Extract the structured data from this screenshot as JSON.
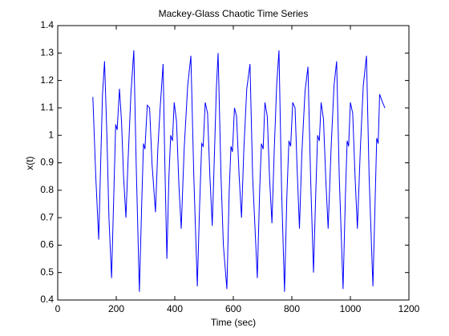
{
  "chart_data": {
    "type": "line",
    "title": "Mackey-Glass Chaotic Time Series",
    "x_label": "Time (sec)",
    "y_label": "x(t)",
    "xlim": [
      0,
      1200
    ],
    "xticks": [
      0,
      200,
      400,
      600,
      800,
      1000,
      1200
    ],
    "ylim": [
      0.4,
      1.4
    ],
    "yticks": [
      0.4,
      0.5,
      0.6,
      0.7,
      0.8,
      0.9,
      1,
      1.1,
      1.2,
      1.3,
      1.4
    ],
    "series": [
      {
        "color": "#0000ff",
        "x": [
          120,
          130,
          140,
          148,
          153,
          160,
          168,
          175,
          184,
          192,
          198,
          203,
          211,
          218,
          225,
          233,
          240,
          250,
          260,
          268,
          279,
          287,
          293,
          298,
          306,
          314,
          322,
          334,
          342,
          350,
          360,
          366,
          373,
          380,
          386,
          392,
          398,
          406,
          414,
          422,
          432,
          444,
          455,
          465,
          477,
          485,
          492,
          497,
          504,
          512,
          520,
          528,
          536,
          542,
          548,
          558,
          566,
          578,
          586,
          592,
          597,
          604,
          611,
          620,
          628,
          636,
          646,
          657,
          666,
          682,
          690,
          696,
          702,
          708,
          716,
          724,
          732,
          740,
          748,
          756,
          765,
          775,
          783,
          790,
          796,
          803,
          811,
          818,
          826,
          834,
          845,
          855,
          864,
          874,
          882,
          888,
          894,
          900,
          908,
          916,
          924,
          934,
          944,
          953,
          962,
          975,
          983,
          989,
          994,
          1000,
          1008,
          1016,
          1024,
          1034,
          1044,
          1055,
          1064,
          1077,
          1085,
          1090,
          1095,
          1100,
          1110,
          1118
        ],
        "values": [
          1.14,
          0.85,
          0.62,
          0.95,
          1.15,
          1.27,
          1.0,
          0.7,
          0.48,
          0.8,
          1.04,
          1.02,
          1.17,
          1.05,
          0.85,
          0.7,
          0.9,
          1.15,
          1.31,
          0.9,
          0.43,
          0.75,
          0.97,
          0.95,
          1.11,
          1.1,
          0.9,
          0.72,
          0.95,
          1.1,
          1.26,
          0.9,
          0.55,
          0.85,
          1.0,
          0.98,
          1.12,
          1.05,
          0.82,
          0.66,
          0.95,
          1.18,
          1.29,
          0.85,
          0.45,
          0.75,
          0.97,
          0.96,
          1.12,
          1.08,
          0.85,
          0.67,
          0.95,
          1.17,
          1.3,
          0.85,
          0.6,
          0.44,
          0.8,
          0.96,
          0.94,
          1.1,
          1.07,
          0.85,
          0.7,
          0.95,
          1.17,
          1.26,
          0.85,
          0.48,
          0.8,
          0.97,
          0.95,
          1.12,
          1.07,
          0.84,
          0.68,
          0.95,
          1.18,
          1.31,
          0.8,
          0.43,
          0.78,
          0.98,
          0.96,
          1.12,
          1.1,
          0.88,
          0.66,
          0.93,
          1.16,
          1.25,
          0.85,
          0.5,
          0.8,
          1.0,
          0.98,
          1.12,
          1.06,
          0.84,
          0.66,
          0.95,
          1.18,
          1.27,
          0.85,
          0.44,
          0.78,
          0.98,
          0.96,
          1.12,
          1.08,
          0.85,
          0.66,
          0.95,
          1.18,
          1.29,
          0.85,
          0.45,
          0.78,
          0.99,
          0.97,
          1.15,
          1.12,
          1.1
        ]
      }
    ]
  }
}
